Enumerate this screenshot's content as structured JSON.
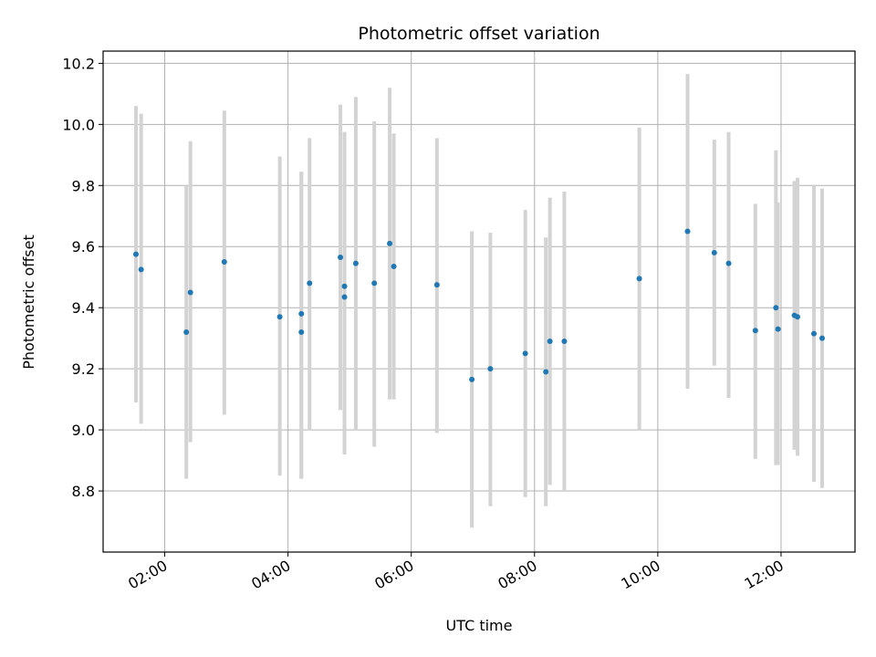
{
  "chart_data": {
    "type": "scatter",
    "title": "Photometric offset variation",
    "xlabel": "UTC time",
    "ylabel": "Photometric offset",
    "x_ticks": [
      "02:00",
      "04:00",
      "06:00",
      "08:00",
      "10:00",
      "12:00"
    ],
    "y_ticks": [
      "8.8",
      "9.0",
      "9.2",
      "9.4",
      "9.6",
      "9.8",
      "10.0",
      "10.2"
    ],
    "xlim": [
      "01:00",
      "13:12"
    ],
    "ylim": [
      8.6,
      10.24
    ],
    "grid": true,
    "legend": "none",
    "colors": {
      "points": "#1f77b4",
      "error_bars": "#d3d3d3",
      "grid": "#b0b0b0"
    },
    "series": [
      {
        "points": [
          {
            "x": "01:32",
            "y": 9.575,
            "low": 9.09,
            "high": 10.06
          },
          {
            "x": "01:37",
            "y": 9.525,
            "low": 9.02,
            "high": 10.035
          },
          {
            "x": "02:21",
            "y": 9.32,
            "low": 8.84,
            "high": 9.8
          },
          {
            "x": "02:25",
            "y": 9.45,
            "low": 8.96,
            "high": 9.945
          },
          {
            "x": "02:58",
            "y": 9.55,
            "low": 9.05,
            "high": 10.045
          },
          {
            "x": "03:52",
            "y": 9.37,
            "low": 8.85,
            "high": 9.895
          },
          {
            "x": "04:13",
            "y": 9.38,
            "low": 8.84,
            "high": 9.845
          },
          {
            "x": "04:13",
            "y": 9.32,
            "low": 8.84,
            "high": 9.845
          },
          {
            "x": "04:21",
            "y": 9.48,
            "low": 9.0,
            "high": 9.955
          },
          {
            "x": "04:51",
            "y": 9.565,
            "low": 9.065,
            "high": 10.065
          },
          {
            "x": "04:55",
            "y": 9.47,
            "low": 8.92,
            "high": 9.975
          },
          {
            "x": "04:55",
            "y": 9.435,
            "low": 8.92,
            "high": 9.975
          },
          {
            "x": "05:06",
            "y": 9.545,
            "low": 9.0,
            "high": 10.09
          },
          {
            "x": "05:24",
            "y": 9.48,
            "low": 8.945,
            "high": 10.01
          },
          {
            "x": "05:39",
            "y": 9.61,
            "low": 9.1,
            "high": 10.12
          },
          {
            "x": "05:43",
            "y": 9.535,
            "low": 9.1,
            "high": 9.97
          },
          {
            "x": "06:25",
            "y": 9.475,
            "low": 8.99,
            "high": 9.955
          },
          {
            "x": "06:59",
            "y": 9.165,
            "low": 8.68,
            "high": 9.65
          },
          {
            "x": "07:17",
            "y": 9.2,
            "low": 8.75,
            "high": 9.645
          },
          {
            "x": "07:51",
            "y": 9.25,
            "low": 8.78,
            "high": 9.72
          },
          {
            "x": "08:11",
            "y": 9.19,
            "low": 8.75,
            "high": 9.63
          },
          {
            "x": "08:15",
            "y": 9.29,
            "low": 8.82,
            "high": 9.76
          },
          {
            "x": "08:29",
            "y": 9.29,
            "low": 8.8,
            "high": 9.78
          },
          {
            "x": "09:42",
            "y": 9.495,
            "low": 9.0,
            "high": 9.99
          },
          {
            "x": "10:29",
            "y": 9.65,
            "low": 9.135,
            "high": 10.165
          },
          {
            "x": "10:55",
            "y": 9.58,
            "low": 9.21,
            "high": 9.95
          },
          {
            "x": "11:09",
            "y": 9.545,
            "low": 9.105,
            "high": 9.975
          },
          {
            "x": "11:35",
            "y": 9.325,
            "low": 8.905,
            "high": 9.74
          },
          {
            "x": "11:55",
            "y": 9.4,
            "low": 8.885,
            "high": 9.915
          },
          {
            "x": "11:57",
            "y": 9.33,
            "low": 8.885,
            "high": 9.745
          },
          {
            "x": "12:13",
            "y": 9.375,
            "low": 8.935,
            "high": 9.815
          },
          {
            "x": "12:16",
            "y": 9.37,
            "low": 8.915,
            "high": 9.825
          },
          {
            "x": "12:32",
            "y": 9.315,
            "low": 8.83,
            "high": 9.8
          },
          {
            "x": "12:40",
            "y": 9.3,
            "low": 8.81,
            "high": 9.79
          }
        ]
      }
    ]
  }
}
